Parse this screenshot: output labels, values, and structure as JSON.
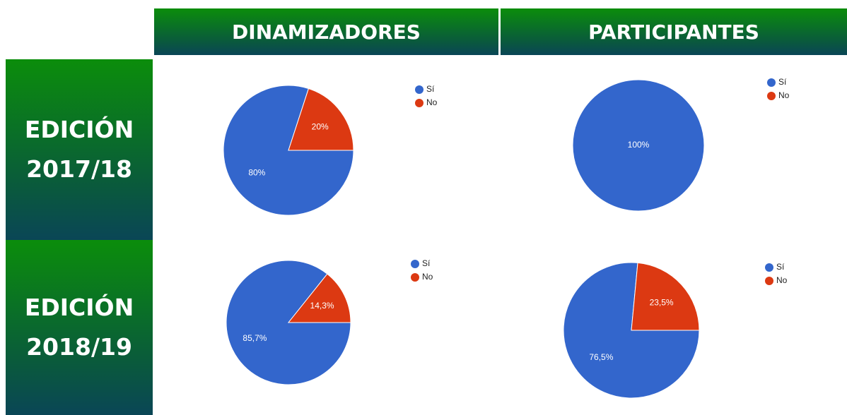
{
  "table": {
    "columns": [
      "DINAMIZADORES",
      "PARTICIPANTES"
    ],
    "rows": [
      "EDICIÓN 2017/18",
      "EDICIÓN 2018/19"
    ]
  },
  "chart_data": [
    {
      "type": "pie",
      "categories": [
        "Sí",
        "No"
      ],
      "values": [
        80,
        20
      ],
      "value_labels": [
        "80%",
        "20%"
      ],
      "colors": [
        "#3366cc",
        "#dc3912"
      ],
      "legend": "right"
    },
    {
      "type": "pie",
      "categories": [
        "Sí",
        "No"
      ],
      "values": [
        100,
        0
      ],
      "value_labels": [
        "100%",
        null
      ],
      "colors": [
        "#3366cc",
        "#dc3912"
      ],
      "legend": "right"
    },
    {
      "type": "pie",
      "categories": [
        "Sí",
        "No"
      ],
      "values": [
        85.7,
        14.3
      ],
      "value_labels": [
        "85,7%",
        "14,3%"
      ],
      "colors": [
        "#3366cc",
        "#dc3912"
      ],
      "legend": "right"
    },
    {
      "type": "pie",
      "categories": [
        "Sí",
        "No"
      ],
      "values": [
        76.5,
        23.5
      ],
      "value_labels": [
        "76,5%",
        "23,5%"
      ],
      "colors": [
        "#3366cc",
        "#dc3912"
      ],
      "legend": "right"
    }
  ]
}
